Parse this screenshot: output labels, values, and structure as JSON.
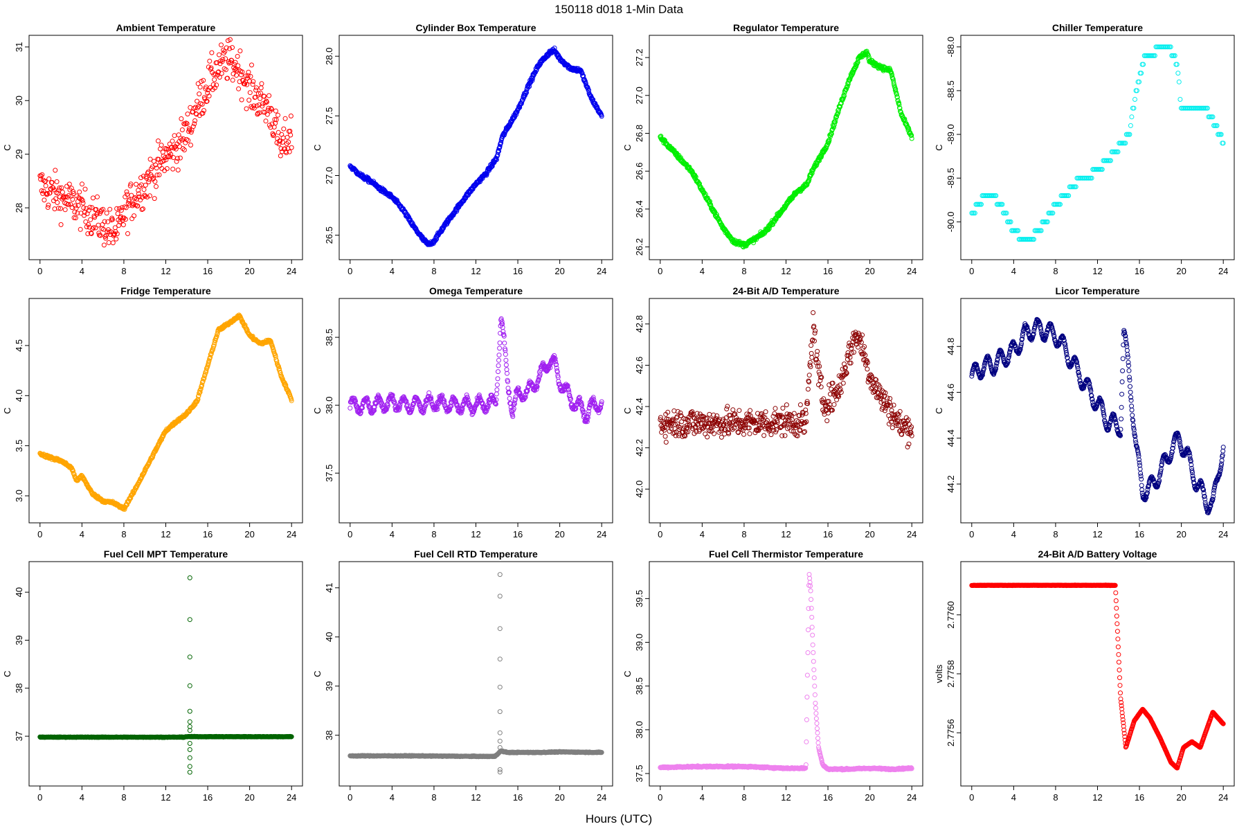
{
  "figure": {
    "title": "150118   d018   1-Min Data",
    "xlabel": "Hours (UTC)"
  },
  "chart_data": [
    {
      "type": "scatter",
      "title": "Ambient Temperature",
      "ylabel": "C",
      "color": "#ff0000",
      "xlim": [
        0,
        24
      ],
      "ylim": [
        27.2,
        31.05
      ],
      "xticks": [
        0,
        4,
        8,
        12,
        16,
        20,
        24
      ],
      "yticks": [
        28,
        29,
        30,
        31
      ],
      "yticklabels": [
        "28",
        "29",
        "30",
        "31"
      ],
      "noise": 0.28,
      "n": 480,
      "x": [
        0,
        1,
        2,
        3,
        4,
        5,
        6,
        7,
        7.5,
        8,
        9,
        10,
        11,
        12,
        13,
        14,
        15,
        16,
        17,
        18,
        19,
        20,
        21,
        22,
        23,
        24
      ],
      "y": [
        28.4,
        28.3,
        28.2,
        28.1,
        28.0,
        27.85,
        27.7,
        27.55,
        27.6,
        27.9,
        28.2,
        28.45,
        28.7,
        28.95,
        29.1,
        29.4,
        29.9,
        30.3,
        30.6,
        30.75,
        30.6,
        30.2,
        30.0,
        29.8,
        29.1,
        29.4
      ]
    },
    {
      "type": "scatter",
      "title": "Cylinder Box Temperature",
      "ylabel": "C",
      "color": "#0000ee",
      "xlim": [
        0,
        24
      ],
      "ylim": [
        26.37,
        28.1
      ],
      "xticks": [
        0,
        4,
        8,
        12,
        16,
        20,
        24
      ],
      "yticks": [
        26.5,
        27.0,
        27.5,
        28.0
      ],
      "yticklabels": [
        "26.5",
        "27.0",
        "27.5",
        "28.0"
      ],
      "noise": 0.012,
      "n": 700,
      "x": [
        0,
        1,
        2,
        3,
        4,
        5,
        6,
        7,
        7.5,
        8,
        9,
        10,
        11,
        12,
        13,
        14,
        14.5,
        16,
        17,
        18,
        19,
        19.5,
        20,
        21,
        22,
        23,
        24
      ],
      "y": [
        27.08,
        27.0,
        26.95,
        26.88,
        26.82,
        26.72,
        26.58,
        26.46,
        26.42,
        26.45,
        26.58,
        26.7,
        26.82,
        26.93,
        27.02,
        27.15,
        27.32,
        27.55,
        27.75,
        27.93,
        28.03,
        28.05,
        27.98,
        27.9,
        27.88,
        27.65,
        27.5
      ]
    },
    {
      "type": "scatter",
      "title": "Regulator Temperature",
      "ylabel": "C",
      "color": "#00ee00",
      "xlim": [
        0,
        24
      ],
      "ylim": [
        26.18,
        27.27
      ],
      "xticks": [
        0,
        4,
        8,
        12,
        16,
        20,
        24
      ],
      "yticks": [
        26.2,
        26.4,
        26.6,
        26.8,
        27.0,
        27.2
      ],
      "yticklabels": [
        "26.2",
        "26.4",
        "26.6",
        "26.8",
        "27.0",
        "27.2"
      ],
      "noise": 0.008,
      "n": 700,
      "x": [
        0,
        1,
        2,
        3,
        4,
        5,
        6,
        7,
        8,
        9,
        10,
        11,
        12,
        13,
        14,
        14.5,
        15,
        16,
        17,
        18,
        19,
        19.7,
        20,
        21,
        22,
        23,
        24
      ],
      "y": [
        26.78,
        26.72,
        26.66,
        26.6,
        26.5,
        26.4,
        26.3,
        26.23,
        26.21,
        26.24,
        26.28,
        26.35,
        26.42,
        26.49,
        26.53,
        26.6,
        26.65,
        26.75,
        26.92,
        27.08,
        27.2,
        27.23,
        27.18,
        27.15,
        27.13,
        26.9,
        26.78
      ]
    },
    {
      "type": "scatter",
      "title": "Chiller Temperature",
      "ylabel": "C",
      "color": "#00eeee",
      "xlim": [
        0,
        24
      ],
      "ylim": [
        -90.33,
        -87.97
      ],
      "xticks": [
        0,
        4,
        8,
        12,
        16,
        20,
        24
      ],
      "yticks": [
        -90.0,
        -89.5,
        -89.0,
        -88.5,
        -88.0
      ],
      "yticklabels": [
        "-90.0",
        "-89.5",
        "-89.0",
        "-88.5",
        "-88.0"
      ],
      "noise": 0,
      "n": 240,
      "step": 0.1,
      "x": [
        0,
        1,
        2,
        3,
        4,
        5,
        5.5,
        6,
        7,
        8,
        9,
        10,
        11,
        12,
        13,
        14,
        15,
        15.7,
        16.5,
        17.5,
        19,
        19.6,
        20,
        21,
        22,
        23,
        24
      ],
      "y": [
        -89.9,
        -89.75,
        -89.7,
        -89.85,
        -90.1,
        -90.2,
        -90.25,
        -90.15,
        -90.0,
        -89.8,
        -89.7,
        -89.55,
        -89.5,
        -89.4,
        -89.3,
        -89.15,
        -89.0,
        -88.5,
        -88.1,
        -88.05,
        -88.05,
        -88.2,
        -88.7,
        -88.7,
        -88.65,
        -88.85,
        -89.1
      ]
    },
    {
      "type": "scatter",
      "title": "Fridge Temperature",
      "ylabel": "C",
      "color": "#ffa500",
      "xlim": [
        0,
        24
      ],
      "ylim": [
        2.82,
        4.88
      ],
      "xticks": [
        0,
        4,
        8,
        12,
        16,
        20,
        24
      ],
      "yticks": [
        3.0,
        3.5,
        4.0,
        4.5
      ],
      "yticklabels": [
        "3.0",
        "3.5",
        "4.0",
        "4.5"
      ],
      "noise": 0.01,
      "n": 700,
      "x": [
        0,
        1,
        2,
        3,
        3.5,
        4,
        5,
        6,
        7,
        8,
        9,
        10,
        11,
        12,
        13,
        14,
        15,
        16,
        17,
        18,
        19,
        20,
        21,
        22,
        23,
        24
      ],
      "y": [
        3.42,
        3.38,
        3.35,
        3.28,
        3.15,
        3.2,
        3.02,
        2.95,
        2.93,
        2.87,
        3.05,
        3.25,
        3.45,
        3.65,
        3.74,
        3.82,
        3.95,
        4.3,
        4.65,
        4.72,
        4.8,
        4.6,
        4.52,
        4.55,
        4.2,
        3.96
      ]
    },
    {
      "type": "scatter",
      "title": "Omega Temperature",
      "ylabel": "C",
      "color": "#a020f0",
      "xlim": [
        0,
        24
      ],
      "ylim": [
        37.2,
        38.72
      ],
      "xticks": [
        0,
        4,
        8,
        12,
        16,
        20,
        24
      ],
      "yticks": [
        37.5,
        38.0,
        38.5
      ],
      "yticklabels": [
        "37.5",
        "38.0",
        "38.5"
      ],
      "noise": 0.015,
      "n": 700,
      "wave": 0.05,
      "x": [
        0,
        2,
        4,
        6,
        8,
        10,
        12,
        13.9,
        14.2,
        14.4,
        15,
        15.5,
        16,
        17,
        18,
        19,
        19.5,
        20,
        21,
        22,
        22.5,
        23,
        24
      ],
      "y": [
        38.0,
        38.0,
        38.02,
        38.0,
        38.02,
        38.0,
        38.0,
        38.02,
        38.4,
        38.65,
        38.2,
        37.95,
        38.08,
        38.1,
        38.2,
        38.33,
        38.3,
        38.18,
        38.05,
        37.98,
        37.93,
        37.98,
        38.02
      ]
    },
    {
      "type": "scatter",
      "title": "24-Bit A/D Temperature",
      "ylabel": "C",
      "color": "#8b0000",
      "xlim": [
        0,
        24
      ],
      "ylim": [
        41.88,
        42.88
      ],
      "xticks": [
        0,
        4,
        8,
        12,
        16,
        20,
        24
      ],
      "yticks": [
        42.0,
        42.2,
        42.4,
        42.6,
        42.8
      ],
      "yticklabels": [
        "42.0",
        "42.2",
        "42.4",
        "42.6",
        "42.8"
      ],
      "noise": 0.05,
      "n": 600,
      "x": [
        0,
        2,
        4,
        6,
        8,
        10,
        12,
        13.9,
        14.3,
        14.6,
        15,
        15.5,
        16,
        17,
        18,
        18.7,
        19.2,
        20,
        21,
        22,
        23,
        24
      ],
      "y": [
        42.32,
        42.32,
        42.32,
        42.32,
        42.32,
        42.32,
        42.33,
        42.32,
        42.6,
        42.8,
        42.6,
        42.42,
        42.42,
        42.48,
        42.65,
        42.75,
        42.7,
        42.55,
        42.45,
        42.38,
        42.3,
        42.3
      ]
    },
    {
      "type": "scatter",
      "title": "Licor Temperature",
      "ylabel": "C",
      "color": "#000080",
      "xlim": [
        0,
        24
      ],
      "ylim": [
        44.07,
        44.97
      ],
      "xticks": [
        0,
        4,
        8,
        12,
        16,
        20,
        24
      ],
      "yticks": [
        44.2,
        44.4,
        44.6,
        44.8
      ],
      "yticklabels": [
        "44.2",
        "44.4",
        "44.6",
        "44.8"
      ],
      "noise": 0.004,
      "n": 700,
      "wave": 0.04,
      "x": [
        0,
        1,
        2,
        3,
        4,
        5,
        6,
        7,
        8,
        9,
        10,
        11,
        12,
        13,
        14.2,
        14.5,
        15,
        15.7,
        16.3,
        17,
        18,
        19,
        19.8,
        20.5,
        21.5,
        22.5,
        23,
        23.5,
        24
      ],
      "y": [
        44.67,
        44.71,
        44.72,
        44.75,
        44.78,
        44.85,
        44.88,
        44.87,
        44.85,
        44.78,
        44.7,
        44.62,
        44.55,
        44.47,
        44.45,
        44.85,
        44.7,
        44.35,
        44.17,
        44.18,
        44.25,
        44.35,
        44.4,
        44.33,
        44.2,
        44.12,
        44.1,
        44.25,
        44.36
      ]
    },
    {
      "type": "scatter",
      "title": "Fuel Cell MPT Temperature",
      "ylabel": "C",
      "color": "#006400",
      "xlim": [
        0,
        24
      ],
      "ylim": [
        36.15,
        40.45
      ],
      "xticks": [
        0,
        4,
        8,
        12,
        16,
        20,
        24
      ],
      "yticks": [
        37,
        38,
        39,
        40
      ],
      "yticklabels": [
        "37",
        "38",
        "39",
        "40"
      ],
      "noise": 0.004,
      "n": 700,
      "x": [
        0,
        6,
        12,
        13.8,
        13.9,
        14.9,
        20,
        24
      ],
      "y": [
        36.98,
        36.98,
        36.98,
        36.98,
        36.99,
        36.99,
        36.99,
        36.99
      ],
      "outliers": {
        "x": 14.3,
        "y": [
          40.3,
          39.43,
          38.65,
          38.05,
          37.52,
          37.3,
          37.2,
          37.12,
          36.85,
          36.72,
          36.55,
          36.37,
          36.25
        ]
      }
    },
    {
      "type": "scatter",
      "title": "Fuel Cell RTD Temperature",
      "ylabel": "C",
      "color": "#7f7f7f",
      "xlim": [
        0,
        24
      ],
      "ylim": [
        37.15,
        41.35
      ],
      "xticks": [
        0,
        4,
        8,
        12,
        16,
        20,
        24
      ],
      "yticks": [
        38,
        39,
        40,
        41
      ],
      "yticklabels": [
        "38",
        "39",
        "40",
        "41"
      ],
      "noise": 0.006,
      "n": 700,
      "x": [
        0,
        6,
        12,
        13.8,
        14.4,
        15,
        18,
        20,
        24
      ],
      "y": [
        37.58,
        37.58,
        37.57,
        37.57,
        37.68,
        37.65,
        37.65,
        37.66,
        37.65
      ],
      "outliers": {
        "x": 14.3,
        "y": [
          41.27,
          40.83,
          40.17,
          39.55,
          38.98,
          38.48,
          38.05,
          37.88,
          37.75,
          37.25,
          37.3
        ]
      }
    },
    {
      "type": "scatter",
      "title": "Fuel Cell Thermistor Temperature",
      "ylabel": "C",
      "color": "#ee82ee",
      "xlim": [
        0,
        24
      ],
      "ylim": [
        37.46,
        39.82
      ],
      "xticks": [
        0,
        4,
        8,
        12,
        16,
        20,
        24
      ],
      "yticks": [
        37.5,
        38.0,
        38.5,
        39.0,
        39.5
      ],
      "yticklabels": [
        "37.5",
        "38.0",
        "38.5",
        "39.0",
        "39.5"
      ],
      "noise": 0.006,
      "n": 700,
      "x": [
        0,
        4,
        8,
        12,
        13.9,
        14.2,
        14.35,
        14.55,
        14.8,
        15.1,
        15.5,
        16,
        18,
        20,
        22,
        24
      ],
      "y": [
        37.57,
        37.58,
        37.58,
        37.56,
        37.56,
        39.8,
        39.6,
        39.0,
        38.3,
        37.8,
        37.6,
        37.55,
        37.55,
        37.56,
        37.55,
        37.56
      ]
    },
    {
      "type": "scatter",
      "title": "24-Bit A/D Battery Voltage",
      "ylabel": "volts",
      "color": "#ff0000",
      "xlim": [
        0,
        24
      ],
      "ylim": [
        2.77545,
        2.77615
      ],
      "xticks": [
        0,
        4,
        8,
        12,
        16,
        20,
        24
      ],
      "yticks": [
        2.7756,
        2.7758,
        2.776
      ],
      "yticklabels": [
        "2.7756",
        "2.7758",
        "2.7760"
      ],
      "noise": 5e-07,
      "n": 700,
      "x": [
        0,
        13.7,
        14.2,
        14.7,
        15.5,
        16.3,
        17,
        18,
        19,
        19.6,
        20.2,
        21,
        21.8,
        23,
        24
      ],
      "y": [
        2.7761,
        2.7761,
        2.77572,
        2.77555,
        2.77564,
        2.77568,
        2.77565,
        2.77558,
        2.7755,
        2.77548,
        2.77555,
        2.77557,
        2.77555,
        2.77567,
        2.77563
      ]
    }
  ]
}
